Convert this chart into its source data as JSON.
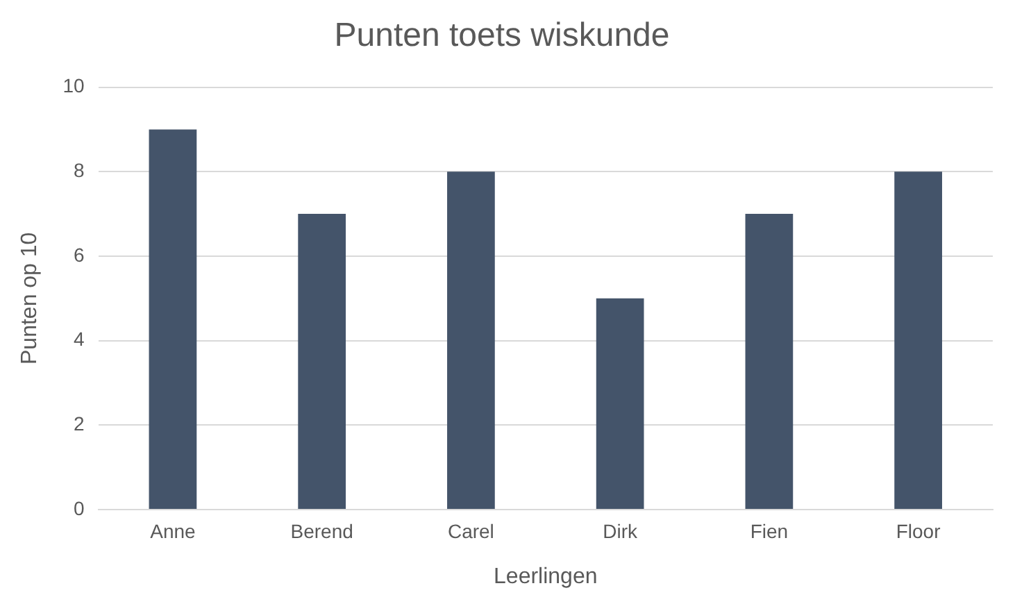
{
  "chart_data": {
    "type": "bar",
    "title": "Punten toets wiskunde",
    "xlabel": "Leerlingen",
    "ylabel": "Punten op 10",
    "categories": [
      "Anne",
      "Berend",
      "Carel",
      "Dirk",
      "Fien",
      "Floor"
    ],
    "values": [
      9,
      7,
      8,
      5,
      7,
      8
    ],
    "color": "#44546a",
    "ylim": [
      0,
      10
    ],
    "yticks": [
      0,
      2,
      4,
      6,
      8,
      10
    ],
    "grid": "y"
  }
}
